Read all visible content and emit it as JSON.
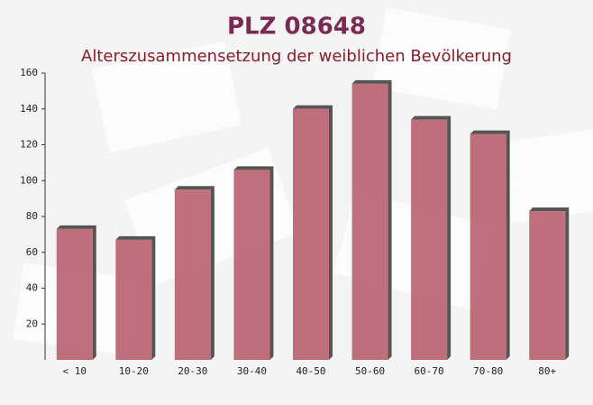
{
  "chart_data": {
    "type": "bar",
    "title": "PLZ 08648",
    "subtitle": "Alterszusammensetzung der weiblichen Bevölkerung",
    "categories": [
      "< 10",
      "10-20",
      "20-30",
      "30-40",
      "40-50",
      "50-60",
      "60-70",
      "70-80",
      "80+"
    ],
    "values": [
      73,
      67,
      95,
      106,
      140,
      154,
      134,
      126,
      83
    ],
    "color": "#b8606e",
    "ylim": [
      0,
      160
    ],
    "yticks": [
      20,
      40,
      60,
      80,
      100,
      120,
      140,
      160
    ]
  }
}
